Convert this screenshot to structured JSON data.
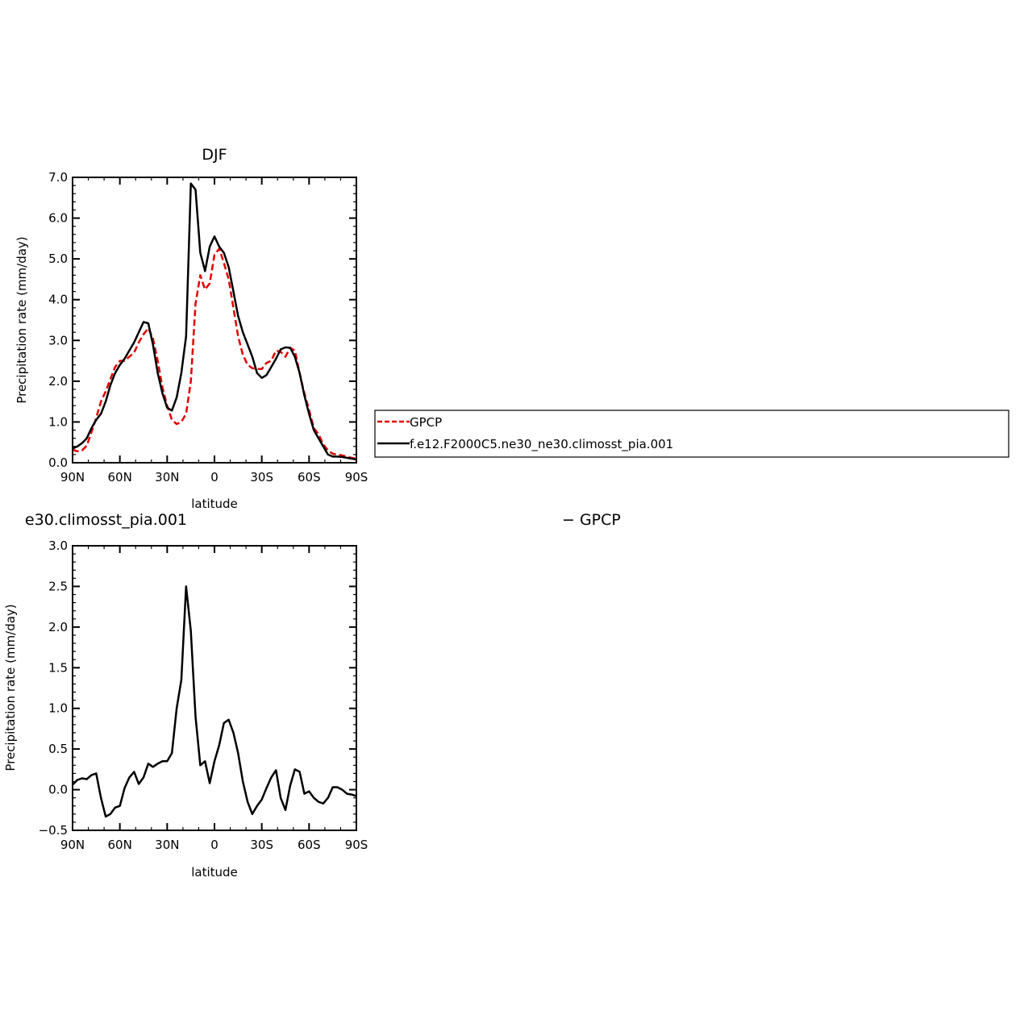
{
  "chart_data": [
    {
      "type": "line",
      "title": "DJF",
      "xlabel": "latitude",
      "ylabel": "Precipitation rate (mm/day)",
      "xlim": [
        90,
        -90
      ],
      "ylim": [
        0,
        7
      ],
      "x_ticks": [
        90,
        60,
        30,
        0,
        -30,
        -60,
        -90
      ],
      "x_tick_labels": [
        "90N",
        "60N",
        "30N",
        "0",
        "30S",
        "60S",
        "90S"
      ],
      "y_ticks": [
        0,
        1,
        2,
        3,
        4,
        5,
        6,
        7
      ],
      "y_tick_labels": [
        "0.0",
        "1.0",
        "2.0",
        "3.0",
        "4.0",
        "5.0",
        "6.0",
        "7.0"
      ],
      "legend": {
        "placement": "right",
        "entries": [
          "GPCP",
          "f.e12.F2000C5.ne30_ne30.climosst_pia.001"
        ]
      },
      "series": [
        {
          "name": "GPCP",
          "color": "#e00000",
          "dash": "dashed",
          "x": [
            90,
            87,
            84,
            81,
            78,
            75,
            72,
            69,
            66,
            63,
            60,
            57,
            54,
            51,
            48,
            45,
            42,
            39,
            36,
            33,
            30,
            27,
            24,
            21,
            18,
            15,
            12,
            9,
            6,
            3,
            0,
            -3,
            -6,
            -9,
            -12,
            -15,
            -18,
            -21,
            -24,
            -27,
            -30,
            -33,
            -36,
            -39,
            -42,
            -45,
            -48,
            -51,
            -54,
            -57,
            -60,
            -63,
            -66,
            -69,
            -72,
            -75,
            -78,
            -81,
            -84,
            -87,
            -90
          ],
          "y": [
            0.32,
            0.28,
            0.3,
            0.42,
            0.75,
            1.1,
            1.5,
            1.75,
            2.05,
            2.35,
            2.5,
            2.5,
            2.6,
            2.7,
            2.95,
            3.15,
            3.3,
            3.05,
            2.5,
            1.85,
            1.4,
            1.05,
            0.95,
            1.0,
            1.2,
            2.0,
            3.9,
            4.6,
            4.25,
            4.4,
            5.1,
            5.25,
            4.9,
            4.5,
            3.8,
            3.1,
            2.65,
            2.4,
            2.32,
            2.3,
            2.3,
            2.45,
            2.5,
            2.75,
            2.72,
            2.6,
            2.82,
            2.75,
            2.2,
            1.7,
            1.3,
            0.85,
            0.7,
            0.45,
            0.3,
            0.22,
            0.2,
            0.18,
            0.15,
            0.12,
            0.1
          ]
        },
        {
          "name": "f.e12.F2000C5.ne30_ne30.climosst_pia.001",
          "color": "#000000",
          "dash": "solid",
          "x": [
            90,
            87,
            84,
            81,
            78,
            75,
            72,
            69,
            66,
            63,
            60,
            57,
            54,
            51,
            48,
            45,
            42,
            39,
            36,
            33,
            30,
            27,
            24,
            21,
            18,
            15,
            12,
            9,
            6,
            3,
            0,
            -3,
            -6,
            -9,
            -12,
            -15,
            -18,
            -21,
            -24,
            -27,
            -30,
            -33,
            -36,
            -39,
            -42,
            -45,
            -48,
            -51,
            -54,
            -57,
            -60,
            -63,
            -66,
            -69,
            -72,
            -75,
            -78,
            -81,
            -84,
            -87,
            -90
          ],
          "y": [
            0.35,
            0.4,
            0.48,
            0.6,
            0.85,
            1.05,
            1.2,
            1.5,
            1.9,
            2.2,
            2.4,
            2.55,
            2.75,
            2.95,
            3.2,
            3.45,
            3.42,
            2.9,
            2.2,
            1.7,
            1.35,
            1.28,
            1.6,
            2.2,
            3.1,
            6.85,
            6.7,
            5.15,
            4.7,
            5.3,
            5.55,
            5.3,
            5.15,
            4.8,
            4.2,
            3.6,
            3.2,
            2.9,
            2.6,
            2.2,
            2.08,
            2.15,
            2.35,
            2.55,
            2.78,
            2.83,
            2.82,
            2.6,
            2.2,
            1.65,
            1.2,
            0.8,
            0.6,
            0.4,
            0.2,
            0.15,
            0.15,
            0.14,
            0.12,
            0.1,
            0.08
          ]
        }
      ]
    },
    {
      "type": "line",
      "title_left": "e30.climosst_pia.001",
      "title_right": "− GPCP",
      "xlabel": "latitude",
      "ylabel": "Precipitation rate (mm/day)",
      "xlim": [
        90,
        -90
      ],
      "ylim": [
        -0.5,
        3.0
      ],
      "x_ticks": [
        90,
        60,
        30,
        0,
        -30,
        -60,
        -90
      ],
      "x_tick_labels": [
        "90N",
        "60N",
        "30N",
        "0",
        "30S",
        "60S",
        "90S"
      ],
      "y_ticks": [
        -0.5,
        0,
        0.5,
        1,
        1.5,
        2,
        2.5,
        3
      ],
      "y_tick_labels": [
        "−0.5",
        "0.0",
        "0.5",
        "1.0",
        "1.5",
        "2.0",
        "2.5",
        "3.0"
      ],
      "series": [
        {
          "color": "#000000",
          "dash": "solid",
          "x": [
            90,
            87,
            84,
            81,
            78,
            75,
            72,
            69,
            66,
            63,
            60,
            57,
            54,
            51,
            48,
            45,
            42,
            39,
            36,
            33,
            30,
            27,
            24,
            21,
            18,
            15,
            12,
            9,
            6,
            3,
            0,
            -3,
            -6,
            -9,
            -12,
            -15,
            -18,
            -21,
            -24,
            -27,
            -30,
            -33,
            -36,
            -39,
            -42,
            -45,
            -48,
            -51,
            -54,
            -57,
            -60,
            -63,
            -66,
            -69,
            -72,
            -75,
            -78,
            -81,
            -84,
            -87,
            -90
          ],
          "y": [
            0.06,
            0.12,
            0.14,
            0.13,
            0.18,
            0.2,
            -0.1,
            -0.33,
            -0.3,
            -0.22,
            -0.2,
            0.02,
            0.15,
            0.22,
            0.07,
            0.15,
            0.32,
            0.28,
            0.32,
            0.35,
            0.35,
            0.45,
            1.0,
            1.35,
            2.5,
            1.95,
            0.9,
            0.3,
            0.35,
            0.08,
            0.35,
            0.55,
            0.82,
            0.86,
            0.7,
            0.45,
            0.1,
            -0.15,
            -0.3,
            -0.2,
            -0.12,
            0.02,
            0.15,
            0.24,
            -0.1,
            -0.25,
            0.05,
            0.25,
            0.22,
            -0.05,
            -0.02,
            -0.1,
            -0.15,
            -0.17,
            -0.1,
            0.03,
            0.03,
            0.0,
            -0.05,
            -0.06,
            -0.08
          ]
        }
      ]
    }
  ]
}
